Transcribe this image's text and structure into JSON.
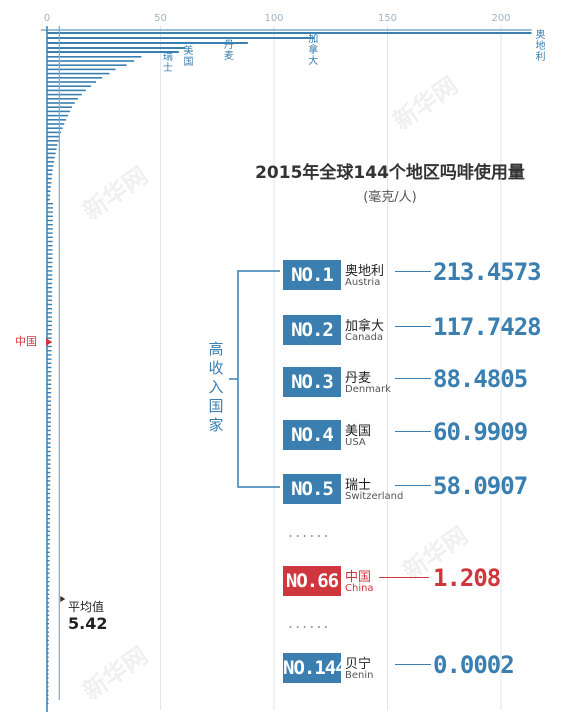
{
  "chart_data": {
    "type": "bar",
    "title": "2015年全球144个地区吗啡使用量",
    "subtitle": "(毫克/人)",
    "xlim": [
      0,
      215
    ],
    "xticks": [
      0,
      50,
      100,
      150,
      200
    ],
    "orientation": "horizontal",
    "labeled_bars": [
      {
        "name": "奥地利",
        "value": 213.4573
      },
      {
        "name": "加拿大",
        "value": 117.7428
      },
      {
        "name": "丹麦",
        "value": 88.4805
      },
      {
        "name": "美国",
        "value": 60.9909
      },
      {
        "name": "瑞士",
        "value": 58.0907
      }
    ],
    "other_bars": [
      41.6,
      38.4,
      35.1,
      30.2,
      27.5,
      24.3,
      21.6,
      19.4,
      17.1,
      15.3,
      13.6,
      12.2,
      11.0,
      10.1,
      9.3,
      8.4,
      7.6,
      6.9,
      6.2,
      5.6,
      5.1,
      4.6,
      4.2,
      3.8,
      3.4,
      3.1,
      2.8,
      2.5,
      2.3,
      2.1,
      1.9,
      1.7,
      1.5,
      1.4,
      1.3
    ],
    "china_value": 1.208,
    "average": {
      "label": "平均值",
      "value": "5.42"
    }
  },
  "ranking": {
    "group_label": "高收入国家",
    "ellipsis": "......",
    "rows": [
      {
        "rank": "NO.1",
        "cn": "奥地利",
        "en": "Austria",
        "value": "213.4573",
        "highlight": false
      },
      {
        "rank": "NO.2",
        "cn": "加拿大",
        "en": "Canada",
        "value": "117.7428",
        "highlight": false
      },
      {
        "rank": "NO.3",
        "cn": "丹麦",
        "en": "Denmark",
        "value": "88.4805",
        "highlight": false
      },
      {
        "rank": "NO.4",
        "cn": "美国",
        "en": "USA",
        "value": "60.9909",
        "highlight": false
      },
      {
        "rank": "NO.5",
        "cn": "瑞士",
        "en": "Switzerland",
        "value": "58.0907",
        "highlight": false
      },
      {
        "rank": "NO.66",
        "cn": "中国",
        "en": "China",
        "value": "1.208",
        "highlight": true
      },
      {
        "rank": "NO.144",
        "cn": "贝宁",
        "en": "Benin",
        "value": "0.0002",
        "highlight": false
      }
    ]
  },
  "china_marker": "中国",
  "watermark": "新华网",
  "colors": {
    "accent": "#3a7fb0",
    "highlight": "#d0363d",
    "text": "#333333"
  }
}
